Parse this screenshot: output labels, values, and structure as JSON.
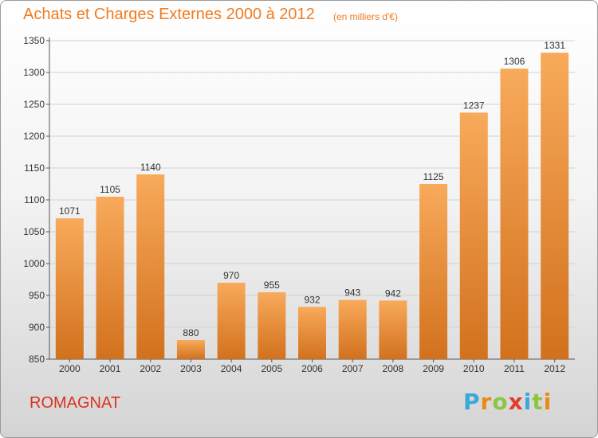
{
  "header": {
    "title": "Achats et Charges Externes 2000 à 2012",
    "unit": "(en milliers d'€)"
  },
  "footer": {
    "commune": "ROMAGNAT",
    "brand_letters": [
      "P",
      "r",
      "o",
      "x",
      "i",
      "t",
      "i"
    ],
    "brand_colors": [
      "#3aa8d8",
      "#e8891a",
      "#8cc63f",
      "#e23b2e",
      "#3aa8d8",
      "#8cc63f",
      "#e8891a"
    ]
  },
  "colors": {
    "bar_top": "#f8aa5b",
    "bar_bottom": "#d2711d",
    "title": "#f07c22",
    "commune": "#d9331f"
  },
  "chart_data": {
    "type": "bar",
    "title": "Achats et Charges Externes 2000 à 2012",
    "subtitle": "(en milliers d'€)",
    "categories": [
      "2000",
      "2001",
      "2002",
      "2003",
      "2004",
      "2005",
      "2006",
      "2007",
      "2008",
      "2009",
      "2010",
      "2011",
      "2012"
    ],
    "values": [
      1071,
      1105,
      1140,
      880,
      970,
      955,
      932,
      943,
      942,
      1125,
      1237,
      1306,
      1331
    ],
    "ylim": [
      850,
      1350
    ],
    "yticks": [
      850,
      900,
      950,
      1000,
      1050,
      1100,
      1150,
      1200,
      1250,
      1300,
      1350
    ],
    "grid": true,
    "xlabel": "",
    "ylabel": ""
  }
}
